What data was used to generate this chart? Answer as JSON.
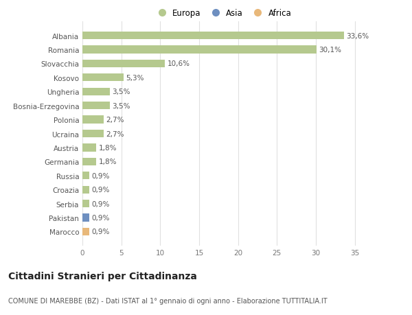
{
  "countries": [
    "Albania",
    "Romania",
    "Slovacchia",
    "Kosovo",
    "Ungheria",
    "Bosnia-Erzegovina",
    "Polonia",
    "Ucraina",
    "Austria",
    "Germania",
    "Russia",
    "Croazia",
    "Serbia",
    "Pakistan",
    "Marocco"
  ],
  "values": [
    33.6,
    30.1,
    10.6,
    5.3,
    3.5,
    3.5,
    2.7,
    2.7,
    1.8,
    1.8,
    0.9,
    0.9,
    0.9,
    0.9,
    0.9
  ],
  "labels": [
    "33,6%",
    "30,1%",
    "10,6%",
    "5,3%",
    "3,5%",
    "3,5%",
    "2,7%",
    "2,7%",
    "1,8%",
    "1,8%",
    "0,9%",
    "0,9%",
    "0,9%",
    "0,9%",
    "0,9%"
  ],
  "continents": [
    "Europa",
    "Europa",
    "Europa",
    "Europa",
    "Europa",
    "Europa",
    "Europa",
    "Europa",
    "Europa",
    "Europa",
    "Europa",
    "Europa",
    "Europa",
    "Asia",
    "Africa"
  ],
  "colors": {
    "Europa": "#b5c98e",
    "Asia": "#6e8fc0",
    "Africa": "#e8b87a"
  },
  "title": "Cittadini Stranieri per Cittadinanza",
  "subtitle": "COMUNE DI MAREBBE (BZ) - Dati ISTAT al 1° gennaio di ogni anno - Elaborazione TUTTITALIA.IT",
  "xlim": [
    0,
    36
  ],
  "xticks": [
    0,
    5,
    10,
    15,
    20,
    25,
    30,
    35
  ],
  "bg_color": "#ffffff",
  "grid_color": "#e0e0e0",
  "bar_height": 0.55,
  "label_fontsize": 7.5,
  "tick_fontsize": 7.5,
  "title_fontsize": 10,
  "subtitle_fontsize": 7
}
